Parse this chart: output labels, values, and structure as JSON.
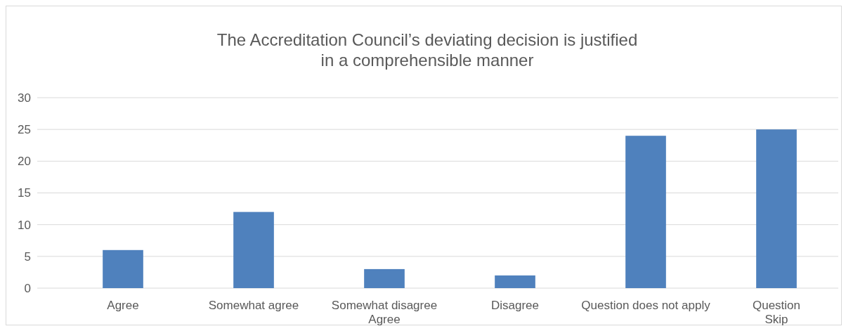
{
  "chart_data": {
    "type": "bar",
    "title": "The Accreditation Council’s deviating decision is justified\nin a comprehensible manner",
    "categories": [
      "Agree",
      "Somewhat agree",
      "Somewhat disagree\nAgree",
      "Disagree",
      "Question does not apply",
      "Question\nSkip"
    ],
    "values": [
      6,
      12,
      3,
      2,
      24,
      25
    ],
    "color": "#4f81bd",
    "ylim": [
      0,
      30
    ],
    "yticks": [
      0,
      5,
      10,
      15,
      20,
      25,
      30
    ],
    "grid": "y"
  }
}
